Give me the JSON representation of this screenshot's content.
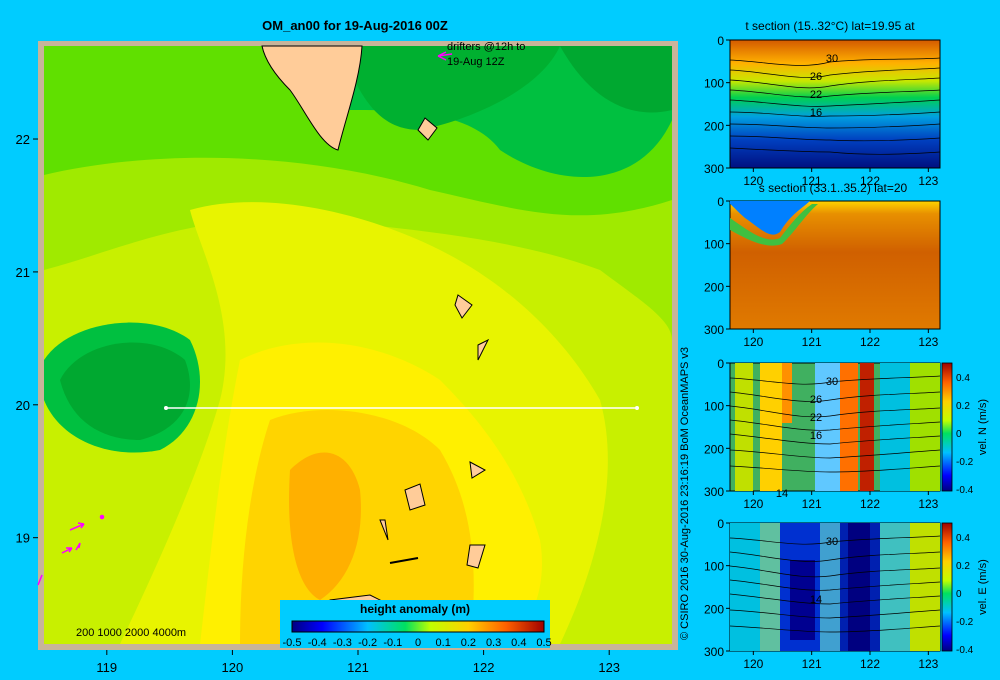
{
  "page": {
    "background": "#00ccff",
    "copyright": "© CSIRO 2016   30-Aug-2016 23:16:19 BoM OceanMAPS v3"
  },
  "main_map": {
    "title": "OM_an00 for 19-Aug-2016 00Z",
    "x_ticks": [
      "119",
      "120",
      "121",
      "122",
      "123"
    ],
    "y_ticks": [
      "22",
      "21",
      "20",
      "19"
    ],
    "drifter_note_line1": "drifters @12h to",
    "drifter_note_line2": "19-Aug 12Z",
    "depth_legend": "200  1000  2000  4000m",
    "section_line": {
      "lon_start": 119.5,
      "lon_end": 123.2,
      "lat": 20.0
    },
    "colorbar": {
      "title": "height anomaly (m)",
      "ticks": [
        "-0.5",
        "-0.4",
        "-0.3",
        "-0.2",
        "-0.1",
        "0",
        "0.1",
        "0.2",
        "0.3",
        "0.4",
        "0.5"
      ]
    }
  },
  "panels": [
    {
      "id": "t-section",
      "title": "t section (15..32°C) lat=19.95 at",
      "x_ticks": [
        "120",
        "121",
        "122",
        "123"
      ],
      "y_ticks": [
        "0",
        "100",
        "200",
        "300"
      ],
      "contour_labels": [
        "30",
        "26",
        "22",
        "16"
      ],
      "has_colorbar": false
    },
    {
      "id": "s-section",
      "title": "s section (33.1..35.2) lat=20",
      "x_ticks": [
        "120",
        "121",
        "122",
        "123"
      ],
      "y_ticks": [
        "0",
        "100",
        "200",
        "300"
      ],
      "contour_labels": [],
      "has_colorbar": false
    },
    {
      "id": "vel-n-section",
      "title": "",
      "x_ticks": [
        "120",
        "121",
        "122",
        "123"
      ],
      "y_ticks": [
        "0",
        "100",
        "200",
        "300"
      ],
      "contour_labels": [
        "30",
        "26",
        "22",
        "16",
        "14"
      ],
      "has_colorbar": true,
      "colorbar_label": "vel. N (m/s)",
      "colorbar_ticks": [
        "0.4",
        "0.2",
        "0",
        "-0.2",
        "-0.4"
      ]
    },
    {
      "id": "vel-e-section",
      "title": "",
      "x_ticks": [
        "120",
        "121",
        "122",
        "123"
      ],
      "y_ticks": [
        "0",
        "100",
        "200",
        "300"
      ],
      "contour_labels": [
        "30",
        "14"
      ],
      "has_colorbar": true,
      "colorbar_label": "vel. E (m/s)",
      "colorbar_ticks": [
        "0.4",
        "0.2",
        "0",
        "-0.2",
        "-0.4"
      ]
    }
  ],
  "chart_data": [
    {
      "type": "heatmap",
      "title": "OM_an00 for 19-Aug-2016 00Z",
      "xlabel": "",
      "ylabel": "",
      "xlim": [
        118.5,
        123.5
      ],
      "ylim": [
        18.2,
        22.7
      ],
      "colorbar_label": "height anomaly (m)",
      "colorbar_range": [
        -0.5,
        0.5
      ]
    },
    {
      "type": "heatmap",
      "title": "t section (15..32°C) lat=19.95 at",
      "xlim": [
        119.6,
        123.2
      ],
      "ylim": [
        300,
        0
      ],
      "x_ticks": [
        120,
        121,
        122,
        123
      ],
      "y_ticks": [
        0,
        100,
        200,
        300
      ],
      "contour_labels": [
        30,
        26,
        22,
        16
      ]
    },
    {
      "type": "heatmap",
      "title": "s section (33.1..35.2) lat=20",
      "xlim": [
        119.6,
        123.2
      ],
      "ylim": [
        300,
        0
      ],
      "x_ticks": [
        120,
        121,
        122,
        123
      ],
      "y_ticks": [
        0,
        100,
        200,
        300
      ]
    },
    {
      "type": "heatmap",
      "title": "",
      "xlim": [
        119.6,
        123.2
      ],
      "ylim": [
        300,
        0
      ],
      "colorbar_label": "vel. N (m/s)",
      "colorbar_range": [
        -0.4,
        0.4
      ],
      "contour_labels": [
        30,
        26,
        22,
        16,
        14
      ]
    },
    {
      "type": "heatmap",
      "title": "",
      "xlim": [
        119.6,
        123.2
      ],
      "ylim": [
        300,
        0
      ],
      "colorbar_label": "vel. E (m/s)",
      "colorbar_range": [
        -0.4,
        0.4
      ],
      "contour_labels": [
        30,
        14
      ]
    }
  ]
}
